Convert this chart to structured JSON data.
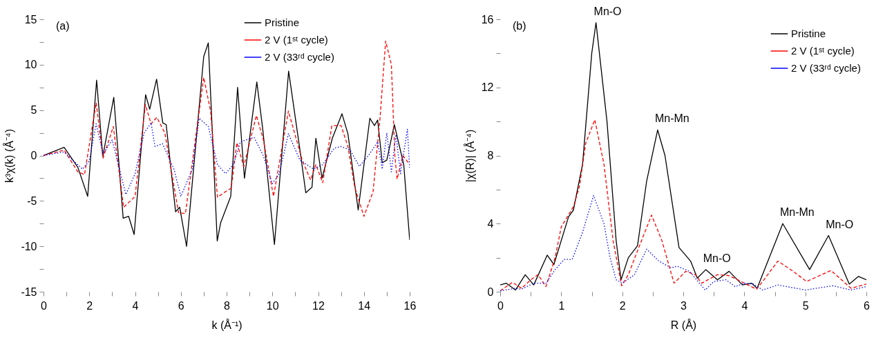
{
  "chart_data": [
    {
      "type": "line",
      "xlabel": "k (Å⁻¹)",
      "ylabel": "k³χ(k) (Å⁻⁴)",
      "xlim": [
        0,
        16
      ],
      "ylim": [
        -15,
        15
      ],
      "grid": false,
      "legend": "top right",
      "marker": "none",
      "xticks": [
        0,
        {
          "value": 1,
          "label": null
        },
        2,
        {
          "value": 3,
          "label": null
        },
        4,
        {
          "value": 5,
          "label": null
        },
        6,
        {
          "value": 7,
          "label": null
        },
        8,
        {
          "value": 9,
          "label": null
        },
        10,
        {
          "value": 11,
          "label": null
        },
        12,
        {
          "value": 13,
          "label": null
        },
        14,
        {
          "value": 15,
          "label": null
        },
        16
      ],
      "yticks": [
        -15,
        {
          "value": -12.5,
          "label": null
        },
        -10,
        {
          "value": -7.5,
          "label": null
        },
        -5,
        {
          "value": -2.5,
          "label": null
        },
        0,
        {
          "value": 2.5,
          "label": null
        },
        5,
        {
          "value": 7.5,
          "label": null
        },
        10,
        {
          "value": 12.5,
          "label": null
        },
        15
      ],
      "annotations": [
        "(a)"
      ],
      "series": [
        {
          "name": "Pristine",
          "color": "#000000",
          "line_style": "solid",
          "x": [
            0,
            0.9,
            1.5,
            1.93,
            2.32,
            2.59,
            3.07,
            3.48,
            3.72,
            3.96,
            4.46,
            4.64,
            4.94,
            5.21,
            5.36,
            5.77,
            5.95,
            6.25,
            7.0,
            7.2,
            7.59,
            7.74,
            8.18,
            8.48,
            8.78,
            9.32,
            9.58,
            10.09,
            10.71,
            11.2,
            11.46,
            11.73,
            11.9,
            12.17,
            12.62,
            13.04,
            13.3,
            13.75,
            14.26,
            14.46,
            14.6,
            14.8,
            15.0,
            15.33,
            15.74,
            16
          ],
          "values": [
            0,
            0.9,
            -1.3,
            -4.5,
            8.3,
            -0.1,
            6.4,
            -6.9,
            -6.7,
            -8.7,
            6.7,
            5.1,
            8.4,
            3.6,
            3.4,
            -6.2,
            -5.7,
            -10,
            10.9,
            12.4,
            -9.4,
            -7.4,
            -4.5,
            7.5,
            -2.5,
            8.1,
            2.9,
            -9.8,
            9.3,
            0.7,
            -4.1,
            -3.5,
            1.9,
            -2.5,
            1.9,
            4.6,
            2.4,
            -6.0,
            4.1,
            3.3,
            3.9,
            -0.8,
            -0.5,
            3.4,
            -1.0,
            -9.3
          ]
        },
        {
          "name": "2 V (1ˢᵗ cycle)",
          "color": "#ff0000",
          "line_style": "dashed",
          "x": [
            0,
            0.9,
            1.5,
            1.79,
            2.3,
            2.6,
            3.05,
            3.5,
            4.0,
            4.45,
            4.7,
            4.95,
            5.3,
            5.9,
            6.2,
            7.0,
            7.3,
            7.6,
            8.0,
            8.2,
            8.45,
            8.75,
            9.3,
            9.6,
            10.05,
            10.7,
            11.3,
            11.67,
            11.9,
            12.2,
            12.6,
            13.0,
            13.3,
            13.6,
            14.0,
            14.4,
            14.7,
            14.95,
            15.2,
            15.35,
            15.45,
            15.7,
            16
          ],
          "values": [
            0,
            0.6,
            -1.8,
            -2.1,
            5.8,
            -0.3,
            3.2,
            -5.7,
            -4.5,
            5.6,
            3.5,
            4.2,
            2.5,
            -6.3,
            -6.4,
            8.6,
            4.9,
            -4.6,
            -3.9,
            -3.6,
            1.4,
            -1.2,
            4.4,
            1.8,
            -4.5,
            4.9,
            -0.5,
            -2.7,
            -1.0,
            -3.0,
            3.3,
            3.3,
            1.0,
            -3.5,
            -6.7,
            -4.0,
            4.0,
            12.6,
            10.0,
            0,
            -2.6,
            0,
            -1.0
          ]
        },
        {
          "name": "2 V (33ʳᵈ cycle)",
          "color": "#0000ff",
          "line_style": "dotted",
          "x": [
            0,
            0.9,
            1.7,
            2.0,
            2.3,
            2.6,
            3.0,
            3.6,
            4.0,
            4.4,
            4.7,
            4.87,
            5.2,
            5.7,
            6.0,
            6.5,
            6.8,
            7.2,
            7.6,
            7.95,
            8.3,
            8.6,
            9.2,
            9.6,
            10.0,
            10.3,
            10.7,
            11.2,
            11.8,
            12.2,
            12.7,
            13.0,
            13.4,
            13.8,
            14.2,
            14.6,
            14.8,
            15.0,
            15.2,
            15.4,
            15.6,
            15.9,
            16
          ],
          "values": [
            0,
            0.4,
            -1.5,
            -0.6,
            3.5,
            0.2,
            1.7,
            -4.3,
            -2.0,
            2.5,
            3.6,
            1.0,
            1.3,
            -1.5,
            -4.5,
            -1.5,
            4.1,
            3.2,
            -1.0,
            -2.0,
            -1.0,
            1.5,
            2.0,
            0,
            -3.1,
            -2.0,
            2.4,
            -0.5,
            -1.5,
            -1.0,
            0.8,
            1.0,
            0.6,
            -1.2,
            0,
            1.5,
            -1.5,
            2.5,
            -1.8,
            2.3,
            -2.0,
            2.9,
            -1.5
          ]
        }
      ]
    },
    {
      "type": "line",
      "xlabel": "R (Å)",
      "ylabel": "|χ(R)| (Å⁻⁴)",
      "xlim": [
        0,
        6
      ],
      "ylim": [
        0,
        16
      ],
      "grid": false,
      "legend": "top right",
      "marker": "none",
      "xticks": [
        0,
        {
          "value": 0.5,
          "label": null
        },
        1,
        {
          "value": 1.5,
          "label": null
        },
        2,
        {
          "value": 2.5,
          "label": null
        },
        3,
        {
          "value": 3.5,
          "label": null
        },
        4,
        {
          "value": 4.5,
          "label": null
        },
        5,
        {
          "value": 5.5,
          "label": null
        },
        6
      ],
      "yticks": [
        0,
        {
          "value": 2,
          "label": null
        },
        4,
        {
          "value": 6,
          "label": null
        },
        8,
        {
          "value": 10,
          "label": null
        },
        12,
        {
          "value": 14,
          "label": null
        },
        16
      ],
      "annotations": [
        "(b)",
        {
          "text": "Mn-O",
          "x": 1.58,
          "y": 15.8
        },
        {
          "text": "Mn-Mn",
          "x": 2.58,
          "y": 9.5
        },
        {
          "text": "Mn-O",
          "x": 3.37,
          "y": 1.3
        },
        {
          "text": "Mn-Mn",
          "x": 4.63,
          "y": 4.0
        },
        {
          "text": "Mn-O",
          "x": 5.38,
          "y": 3.3
        }
      ],
      "series": [
        {
          "name": "Pristine",
          "color": "#000000",
          "line_style": "solid",
          "x": [
            0,
            0.1,
            0.25,
            0.41,
            0.55,
            0.77,
            0.88,
            1.12,
            1.2,
            1.35,
            1.5,
            1.57,
            1.75,
            1.9,
            1.98,
            2.1,
            2.25,
            2.4,
            2.58,
            2.7,
            2.93,
            3.12,
            3.23,
            3.37,
            3.56,
            3.75,
            3.97,
            4.12,
            4.21,
            4.63,
            5.07,
            5.38,
            5.72,
            5.87,
            6
          ],
          "values": [
            0.4,
            0.5,
            0.1,
            1.0,
            0.4,
            2.15,
            1.6,
            4.4,
            4.8,
            7.5,
            14,
            15.8,
            10,
            3,
            0.7,
            2.0,
            2.7,
            6.5,
            9.5,
            8.0,
            2.6,
            1.8,
            0.8,
            1.3,
            0.7,
            1.2,
            0.4,
            0.5,
            0.2,
            4.0,
            1.3,
            3.3,
            0.45,
            0.9,
            0.7
          ]
        },
        {
          "name": "2 V (1ˢᵗ cycle)",
          "color": "#ff0000",
          "line_style": "dashed",
          "x": [
            0,
            0.2,
            0.35,
            0.5,
            0.62,
            0.75,
            0.9,
            1.0,
            1.2,
            1.3,
            1.4,
            1.55,
            1.7,
            1.85,
            1.99,
            2.1,
            2.25,
            2.48,
            2.65,
            2.8,
            2.85,
            3.04,
            3.2,
            3.3,
            3.56,
            3.75,
            4.0,
            4.2,
            4.3,
            4.55,
            4.8,
            5.02,
            5.42,
            5.75,
            6
          ],
          "values": [
            0.05,
            0.55,
            0.2,
            0.7,
            1.0,
            0.3,
            2.0,
            3.8,
            5.0,
            6.2,
            8.7,
            10.1,
            7.5,
            3.0,
            0.35,
            1.0,
            2.4,
            4.5,
            3.0,
            1.1,
            0.5,
            1.2,
            1.0,
            0.5,
            1.0,
            0.95,
            0.5,
            0.15,
            0.6,
            1.8,
            1.2,
            0.6,
            1.25,
            0.2,
            0.45
          ]
        },
        {
          "name": "2 V (33ʳᵈ cycle)",
          "color": "#0000ff",
          "line_style": "dotted",
          "x": [
            0,
            0.25,
            0.35,
            0.55,
            0.75,
            0.9,
            1.05,
            1.18,
            1.35,
            1.53,
            1.7,
            1.8,
            1.9,
            2.0,
            2.2,
            2.4,
            2.6,
            2.8,
            2.9,
            3.1,
            3.36,
            3.5,
            3.7,
            3.85,
            4.0,
            4.15,
            4.3,
            4.55,
            5.0,
            5.45,
            5.75,
            6
          ],
          "values": [
            0.05,
            0.2,
            0.15,
            0.5,
            0.5,
            1.3,
            1.9,
            1.9,
            3.5,
            5.65,
            4.0,
            2.0,
            0.7,
            0.5,
            1.0,
            2.5,
            1.8,
            1.4,
            1.5,
            1.2,
            0.1,
            0.6,
            0.7,
            0.3,
            0.5,
            0.45,
            0.1,
            0.4,
            0.1,
            0.35,
            0.1,
            0.3
          ]
        }
      ]
    }
  ]
}
